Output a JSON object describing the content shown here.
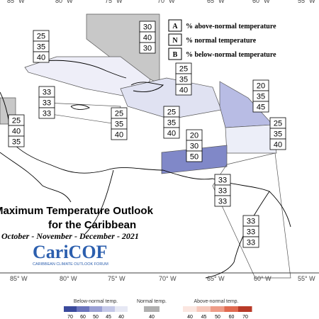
{
  "longitude_labels": {
    "top": [
      "85° W",
      "80° W",
      "75° W",
      "70° W",
      "65° W",
      "60° W",
      "55° W"
    ],
    "bottom": [
      "85° W",
      "80° W",
      "75° W",
      "70° W",
      "65° W",
      "60° W",
      "55° W"
    ]
  },
  "legend": [
    {
      "key": "A",
      "text": "% above-normal temperature"
    },
    {
      "key": "N",
      "text": "% normal temperature"
    },
    {
      "key": "B",
      "text": "% below-normal temperature"
    }
  ],
  "regions": [
    {
      "values": [
        30,
        40,
        30
      ]
    },
    {
      "values": [
        25,
        35,
        40
      ]
    },
    {
      "values": [
        25,
        35,
        40
      ]
    },
    {
      "values": [
        20,
        35,
        45
      ]
    },
    {
      "values": [
        33,
        33,
        33
      ]
    },
    {
      "values": [
        25,
        35,
        40
      ]
    },
    {
      "values": [
        25,
        35,
        40
      ]
    },
    {
      "values": [
        25,
        35,
        40
      ]
    },
    {
      "values": [
        25,
        40,
        35
      ]
    },
    {
      "values": [
        20,
        30,
        50
      ]
    },
    {
      "values": [
        33,
        33,
        33
      ]
    },
    {
      "values": [
        33,
        33,
        33
      ]
    }
  ],
  "title": {
    "line1": "Maximum Temperature Outlook",
    "line2": "for the Caribbean",
    "period": "October - November - December - 2021"
  },
  "logo": {
    "name": "CariCOF",
    "tagline": "CARIBBEAN CLIMATE OUTLOOK FORUM"
  },
  "color_scale": {
    "below_label": "Below-normal temp.",
    "below_ticks": [
      70,
      60,
      50,
      45,
      40
    ],
    "normal_label": "Normal temp.",
    "normal_ticks": [
      40
    ],
    "above_label": "Above-normal temp.",
    "above_ticks": [
      40,
      45,
      50,
      60,
      70
    ]
  }
}
